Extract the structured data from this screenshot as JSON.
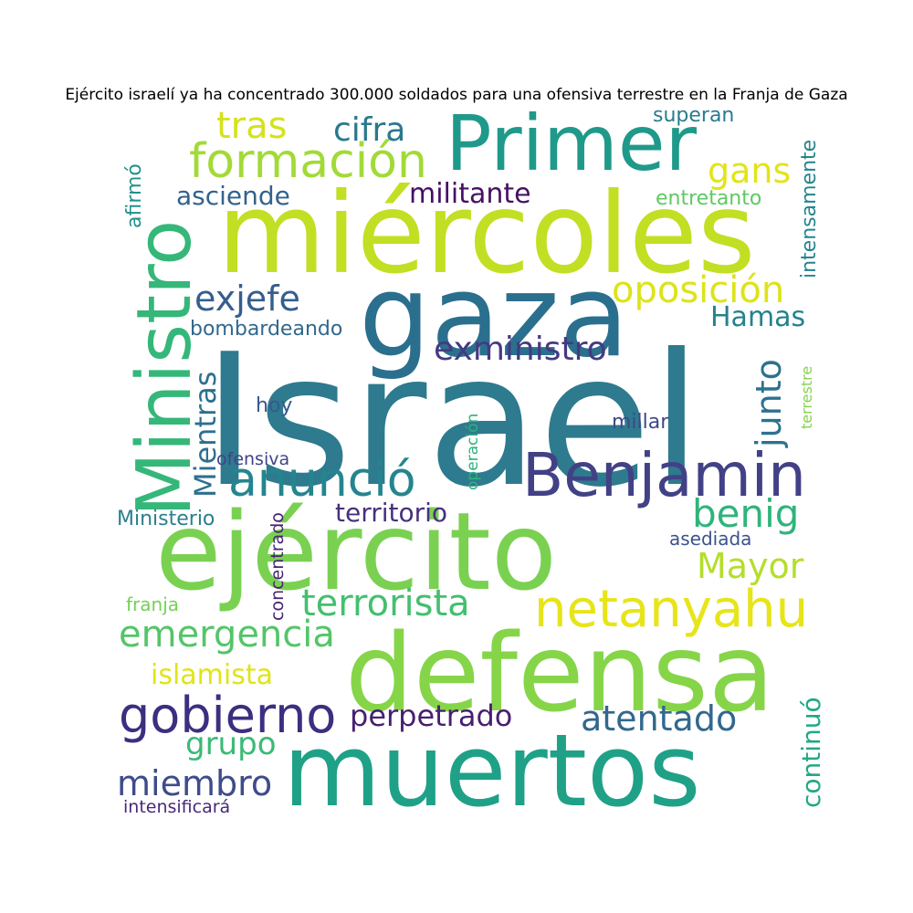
{
  "title": "Ejército israelí ya ha concentrado 300.000 soldados para una ofensiva terrestre en la Franja de Gaza",
  "words": [
    {
      "text": "Israel",
      "color": "#2e7a8e"
    },
    {
      "text": "gaza",
      "color": "#2b6f8e"
    },
    {
      "text": "miércoles",
      "color": "#c2df23"
    },
    {
      "text": "ejército",
      "color": "#7ad151"
    },
    {
      "text": "defensa",
      "color": "#86d549"
    },
    {
      "text": "muertos",
      "color": "#1fa187"
    },
    {
      "text": "Primer",
      "color": "#1f998a"
    },
    {
      "text": "Ministro",
      "color": "#35b779"
    },
    {
      "text": "Benjamin",
      "color": "#424186"
    },
    {
      "text": "netanyahu",
      "color": "#e7e419"
    },
    {
      "text": "formación",
      "color": "#a2da37"
    },
    {
      "text": "anunció",
      "color": "#25858e"
    },
    {
      "text": "gobierno",
      "color": "#3b2f80"
    },
    {
      "text": "terrorista",
      "color": "#44bf70"
    },
    {
      "text": "emergencia",
      "color": "#54c568"
    },
    {
      "text": "oposición",
      "color": "#dde318"
    },
    {
      "text": "exministro",
      "color": "#443a83"
    },
    {
      "text": "atentado",
      "color": "#31688e"
    },
    {
      "text": "perpetrado",
      "color": "#481f70"
    },
    {
      "text": "militante",
      "color": "#471063"
    },
    {
      "text": "exjefe",
      "color": "#355e8d"
    },
    {
      "text": "tras",
      "color": "#d5e21a"
    },
    {
      "text": "cifra",
      "color": "#2a788e"
    },
    {
      "text": "gans",
      "color": "#e2e418"
    },
    {
      "text": "asciende",
      "color": "#33628d"
    },
    {
      "text": "junto",
      "color": "#2c728e"
    },
    {
      "text": "Hamas",
      "color": "#26818e"
    },
    {
      "text": "benig",
      "color": "#2fb47c"
    },
    {
      "text": "Mayor",
      "color": "#b5de2b"
    },
    {
      "text": "Mientras",
      "color": "#2d708e"
    },
    {
      "text": "territorio",
      "color": "#46307e"
    },
    {
      "text": "islamista",
      "color": "#e0e418"
    },
    {
      "text": "grupo",
      "color": "#3aba76"
    },
    {
      "text": "miembro",
      "color": "#3e4c8a"
    },
    {
      "text": "continuó",
      "color": "#22a884"
    },
    {
      "text": "intensamente",
      "color": "#25848e"
    },
    {
      "text": "superan",
      "color": "#287c8e"
    },
    {
      "text": "entretanto",
      "color": "#5ec962"
    },
    {
      "text": "afirmó",
      "color": "#21918c"
    },
    {
      "text": "bombardeando",
      "color": "#31688e"
    },
    {
      "text": "hoy",
      "color": "#38598c"
    },
    {
      "text": "millar",
      "color": "#3e4989"
    },
    {
      "text": "ofensiva",
      "color": "#414487"
    },
    {
      "text": "operación",
      "color": "#2db27d"
    },
    {
      "text": "terrestre",
      "color": "#84d44b"
    },
    {
      "text": "Ministerio",
      "color": "#2c7e8e"
    },
    {
      "text": "concentrado",
      "color": "#482475"
    },
    {
      "text": "asediada",
      "color": "#3b528b"
    },
    {
      "text": "franja",
      "color": "#73d056"
    },
    {
      "text": "intensificará",
      "color": "#482878"
    }
  ]
}
